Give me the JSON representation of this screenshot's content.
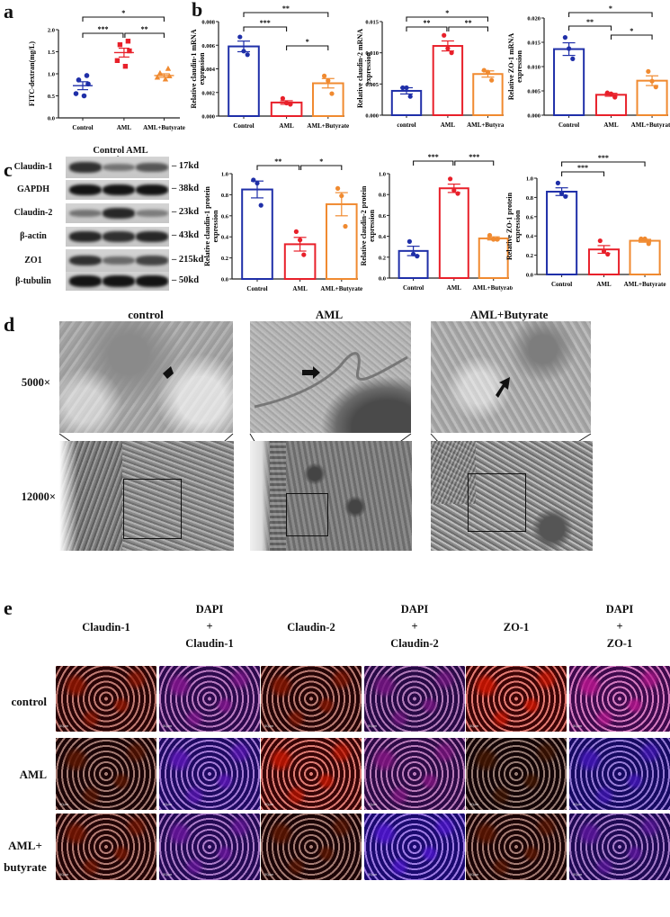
{
  "panels": {
    "a": "a",
    "b": "b",
    "c": "c",
    "d": "d",
    "e": "e"
  },
  "colors": {
    "control": "#1f2fa8",
    "aml": "#e8202a",
    "butyrate": "#f08a30",
    "axis": "#222222"
  },
  "chart_data": [
    {
      "id": "a",
      "type": "scatter",
      "title": "",
      "ylabel": "FITC-dextran(mg/L)",
      "xlabel": "",
      "categories": [
        "Control",
        "AML",
        "AML+Butyrate"
      ],
      "ylim": [
        0,
        2.0
      ],
      "yticks": [
        "0.0",
        "0.5",
        "1.0",
        "1.5",
        "2.0"
      ],
      "series": [
        {
          "name": "Control",
          "points": [
            0.96,
            0.86,
            0.77,
            0.55,
            0.5
          ],
          "mean": 0.73,
          "sem": 0.09
        },
        {
          "name": "AML",
          "points": [
            1.74,
            1.66,
            1.52,
            1.3,
            1.17
          ],
          "mean": 1.48,
          "sem": 0.1
        },
        {
          "name": "AML+Butyrate",
          "points": [
            1.12,
            1.02,
            0.95,
            0.92,
            0.88
          ],
          "mean": 0.96,
          "sem": 0.04
        }
      ],
      "significance": [
        {
          "from": "Control",
          "to": "AML+Butyrate",
          "label": "*"
        },
        {
          "from": "Control",
          "to": "AML",
          "label": "***"
        },
        {
          "from": "AML",
          "to": "AML+Butyrate",
          "label": "**"
        }
      ]
    },
    {
      "id": "b1",
      "type": "bar",
      "ylabel": "Relative claudin-1 mRNA expression",
      "categories": [
        "Control",
        "AML",
        "AML+Butyrate"
      ],
      "ylim": [
        0,
        0.008
      ],
      "yticks": [
        "0.000",
        "0.002",
        "0.004",
        "0.006",
        "0.008"
      ],
      "values": [
        0.0059,
        0.00115,
        0.00278
      ],
      "sem": [
        0.00045,
        0.00015,
        0.0004
      ],
      "points": [
        [
          0.0067,
          0.0055,
          0.0052
        ],
        [
          0.0015,
          0.0011,
          0.001
        ],
        [
          0.0034,
          0.003,
          0.0019
        ]
      ],
      "significance": [
        {
          "from": "Control",
          "to": "AML+Butyrate",
          "label": "**"
        },
        {
          "from": "Control",
          "to": "AML",
          "label": "***"
        },
        {
          "from": "AML",
          "to": "AML+Butyrate",
          "label": "*"
        }
      ]
    },
    {
      "id": "b2",
      "type": "bar",
      "ylabel": "Relative claudin-2 mRNA expression",
      "categories": [
        "control",
        "AML",
        "AML+Butyrate"
      ],
      "ylim": [
        0,
        0.015
      ],
      "yticks": [
        "0.000",
        "0.005",
        "0.010",
        "0.015"
      ],
      "values": [
        0.0039,
        0.0111,
        0.0066
      ],
      "sem": [
        0.0005,
        0.0008,
        0.0005
      ],
      "points": [
        [
          0.0044,
          0.0044,
          0.003
        ],
        [
          0.0128,
          0.0107,
          0.01
        ],
        [
          0.0072,
          0.0069,
          0.0056
        ]
      ],
      "significance": [
        {
          "from": "control",
          "to": "AML+Butyrate",
          "label": "*"
        },
        {
          "from": "control",
          "to": "AML",
          "label": "**"
        },
        {
          "from": "AML",
          "to": "AML+Butyrate",
          "label": "**"
        }
      ]
    },
    {
      "id": "b3",
      "type": "bar",
      "ylabel": "Relative ZO-1 mRNA expression",
      "categories": [
        "Control",
        "AML",
        "AML+Butyrate"
      ],
      "ylim": [
        0,
        0.02
      ],
      "yticks": [
        "0.000",
        "0.005",
        "0.010",
        "0.015",
        "0.020"
      ],
      "values": [
        0.0136,
        0.0042,
        0.0071
      ],
      "sem": [
        0.0013,
        0.0003,
        0.001
      ],
      "points": [
        [
          0.016,
          0.0137,
          0.0116
        ],
        [
          0.0046,
          0.0044,
          0.0037
        ],
        [
          0.009,
          0.007,
          0.0058
        ]
      ],
      "significance": [
        {
          "from": "Control",
          "to": "AML+Butyrate",
          "label": "*"
        },
        {
          "from": "Control",
          "to": "AML",
          "label": "**"
        },
        {
          "from": "AML",
          "to": "AML+Butyrate",
          "label": "*"
        }
      ]
    },
    {
      "id": "c1",
      "type": "bar",
      "ylabel": "Relative claudin-1 protein expression",
      "categories": [
        "Control",
        "AML",
        "AML+Butyrate"
      ],
      "ylim": [
        0,
        1.0
      ],
      "yticks": [
        "0.0",
        "0.2",
        "0.4",
        "0.6",
        "0.8",
        "1.0"
      ],
      "values": [
        0.85,
        0.33,
        0.71
      ],
      "sem": [
        0.08,
        0.065,
        0.11
      ],
      "points": [
        [
          0.94,
          0.91,
          0.7
        ],
        [
          0.45,
          0.37,
          0.23
        ],
        [
          0.86,
          0.79,
          0.5
        ]
      ],
      "significance": [
        {
          "from": "Control",
          "to": "AML",
          "label": "**"
        },
        {
          "from": "AML",
          "to": "AML+Butyrate",
          "label": "*"
        }
      ]
    },
    {
      "id": "c2",
      "type": "bar",
      "ylabel": "Relative claudin-2 protein expression",
      "categories": [
        "Control",
        "AML",
        "AML+Butyrate"
      ],
      "ylim": [
        0,
        1.0
      ],
      "yticks": [
        "0.0",
        "0.2",
        "0.4",
        "0.6",
        "0.8",
        "1.0"
      ],
      "values": [
        0.26,
        0.86,
        0.38
      ],
      "sem": [
        0.045,
        0.04,
        0.015
      ],
      "points": [
        [
          0.35,
          0.23,
          0.21
        ],
        [
          0.95,
          0.84,
          0.81
        ],
        [
          0.41,
          0.37,
          0.37
        ]
      ],
      "significance": [
        {
          "from": "Control",
          "to": "AML",
          "label": "***"
        },
        {
          "from": "AML",
          "to": "AML+Butyrate",
          "label": "***"
        }
      ]
    },
    {
      "id": "c3",
      "type": "bar",
      "ylabel": "Relative ZO-1 protein expression",
      "categories": [
        "Control",
        "AML",
        "AML+Butyrate"
      ],
      "ylim": [
        0,
        1.0
      ],
      "yticks": [
        "0.0",
        "0.2",
        "0.4",
        "0.6",
        "0.8",
        "1.0"
      ],
      "values": [
        0.86,
        0.26,
        0.35
      ],
      "sem": [
        0.04,
        0.04,
        0.015
      ],
      "points": [
        [
          0.95,
          0.84,
          0.81
        ],
        [
          0.35,
          0.24,
          0.21
        ],
        [
          0.37,
          0.37,
          0.32
        ]
      ],
      "significance": [
        {
          "from": "Control",
          "to": "AML+Butyrate",
          "label": "***"
        },
        {
          "from": "Control",
          "to": "AML",
          "label": "***"
        }
      ]
    }
  ],
  "western_blot": {
    "header": "Control AML AML+butyrate",
    "rows": [
      {
        "label": "Claudin-1",
        "size": "17kd",
        "intensity": [
          0.8,
          0.45,
          0.6
        ]
      },
      {
        "label": "GAPDH",
        "size": "38kd",
        "intensity": [
          0.95,
          0.95,
          0.95
        ]
      },
      {
        "label": "Claudin-2",
        "size": "23kd",
        "intensity": [
          0.45,
          0.85,
          0.4
        ]
      },
      {
        "label": "β-actin",
        "size": "43kd",
        "intensity": [
          0.85,
          0.8,
          0.85
        ]
      },
      {
        "label": "ZO1",
        "size": "215kd",
        "intensity": [
          0.8,
          0.5,
          0.7
        ]
      },
      {
        "label": "β-tubulin",
        "size": "50kd",
        "intensity": [
          0.95,
          0.95,
          0.95
        ]
      }
    ]
  },
  "tem": {
    "columns": [
      "control",
      "AML",
      "AML+Butyrate"
    ],
    "rows": [
      "5000×",
      "12000×"
    ]
  },
  "immunofluorescence": {
    "columns": [
      {
        "line1": "Claudin-1",
        "line2": "",
        "line3": ""
      },
      {
        "line1": "DAPI",
        "line2": "+",
        "line3": "Claudin-1"
      },
      {
        "line1": "Claudin-2",
        "line2": "",
        "line3": ""
      },
      {
        "line1": "DAPI",
        "line2": "+",
        "line3": "Claudin-2"
      },
      {
        "line1": "ZO-1",
        "line2": "",
        "line3": ""
      },
      {
        "line1": "DAPI",
        "line2": "+",
        "line3": "ZO-1"
      }
    ],
    "rows": [
      {
        "label1": "control",
        "label2": ""
      },
      {
        "label1": "AML",
        "label2": ""
      },
      {
        "label1": "AML+",
        "label2": "butyrate"
      }
    ],
    "scalebar": "50μm"
  }
}
